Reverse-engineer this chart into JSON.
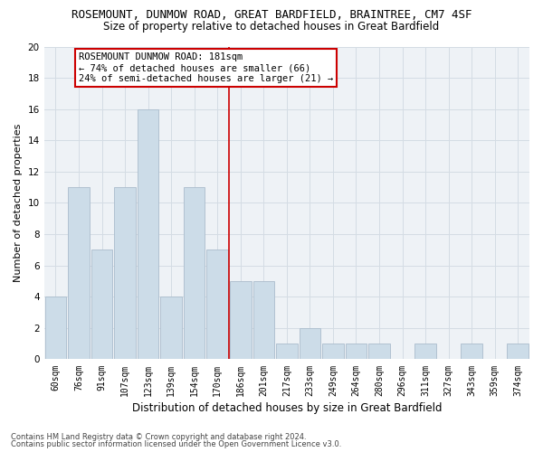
{
  "title": "ROSEMOUNT, DUNMOW ROAD, GREAT BARDFIELD, BRAINTREE, CM7 4SF",
  "subtitle": "Size of property relative to detached houses in Great Bardfield",
  "xlabel": "Distribution of detached houses by size in Great Bardfield",
  "ylabel": "Number of detached properties",
  "footer_line1": "Contains HM Land Registry data © Crown copyright and database right 2024.",
  "footer_line2": "Contains public sector information licensed under the Open Government Licence v3.0.",
  "categories": [
    "60sqm",
    "76sqm",
    "91sqm",
    "107sqm",
    "123sqm",
    "139sqm",
    "154sqm",
    "170sqm",
    "186sqm",
    "201sqm",
    "217sqm",
    "233sqm",
    "249sqm",
    "264sqm",
    "280sqm",
    "296sqm",
    "311sqm",
    "327sqm",
    "343sqm",
    "359sqm",
    "374sqm"
  ],
  "values": [
    4,
    11,
    7,
    11,
    16,
    4,
    11,
    7,
    5,
    5,
    1,
    2,
    1,
    1,
    1,
    0,
    1,
    0,
    1,
    0,
    1
  ],
  "bar_color": "#ccdce8",
  "bar_edgecolor": "#aabccc",
  "grid_color": "#d4dce4",
  "background_color": "#eef2f6",
  "vline_x_index": 8,
  "vline_color": "#cc0000",
  "annotation_text": "ROSEMOUNT DUNMOW ROAD: 181sqm\n← 74% of detached houses are smaller (66)\n24% of semi-detached houses are larger (21) →",
  "annotation_box_edgecolor": "#cc0000",
  "ylim": [
    0,
    20
  ],
  "yticks": [
    0,
    2,
    4,
    6,
    8,
    10,
    12,
    14,
    16,
    18,
    20
  ],
  "title_fontsize": 9,
  "subtitle_fontsize": 8.5,
  "xlabel_fontsize": 8.5,
  "ylabel_fontsize": 8,
  "tick_fontsize": 7,
  "annotation_fontsize": 7.5,
  "footer_fontsize": 6
}
